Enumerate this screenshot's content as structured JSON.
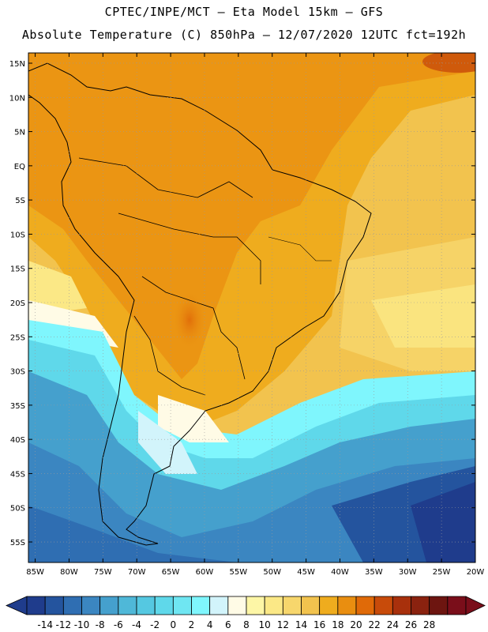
{
  "header": {
    "line1": "CPTEC/INPE/MCT –  Eta Model 15km – GFS",
    "line2": "Absolute Temperature (C) 850hPa – 12/07/2020 12UTC fct=192h"
  },
  "map": {
    "lat_labels": [
      "15N",
      "10N",
      "5N",
      "EQ",
      "5S",
      "10S",
      "15S",
      "20S",
      "25S",
      "30S",
      "35S",
      "40S",
      "45S",
      "50S",
      "55S"
    ],
    "lon_labels": [
      "85W",
      "80W",
      "75W",
      "70W",
      "65W",
      "60W",
      "55W",
      "50W",
      "45W",
      "40W",
      "35W",
      "30W",
      "25W",
      "20W"
    ],
    "lat_values": [
      15,
      10,
      5,
      0,
      -5,
      -10,
      -15,
      -20,
      -25,
      -30,
      -35,
      -40,
      -45,
      -50,
      -55
    ],
    "lon_values": [
      -85,
      -80,
      -75,
      -70,
      -65,
      -60,
      -55,
      -50,
      -45,
      -40,
      -35,
      -30,
      -25,
      -20
    ],
    "extent": {
      "lon": [
        -86,
        -20
      ],
      "lat": [
        -58,
        16.5
      ]
    },
    "gridlines": "dotted",
    "field": "temperature_850hPa"
  },
  "colorbar": {
    "labels": [
      "-14",
      "-12",
      "-10",
      "-8",
      "-6",
      "-4",
      "-2",
      "0",
      "2",
      "4",
      "6",
      "8",
      "10",
      "12",
      "14",
      "16",
      "18",
      "20",
      "22",
      "24",
      "26",
      "28"
    ],
    "colors": [
      "#1f3c8c",
      "#24549e",
      "#2f6eb2",
      "#3b86c1",
      "#45a0cd",
      "#4fb8d8",
      "#55c8e1",
      "#5fd8ea",
      "#6fe6f2",
      "#7ff6fd",
      "#d2f4fb",
      "#fffbe6",
      "#fdf6a6",
      "#fbe886",
      "#f7d66c",
      "#f2c34e",
      "#efac1e",
      "#e98e10",
      "#e06a08",
      "#c84b0a",
      "#a8300c",
      "#8a220f",
      "#6d1510",
      "#7a0e1a"
    ],
    "extends": "both"
  }
}
